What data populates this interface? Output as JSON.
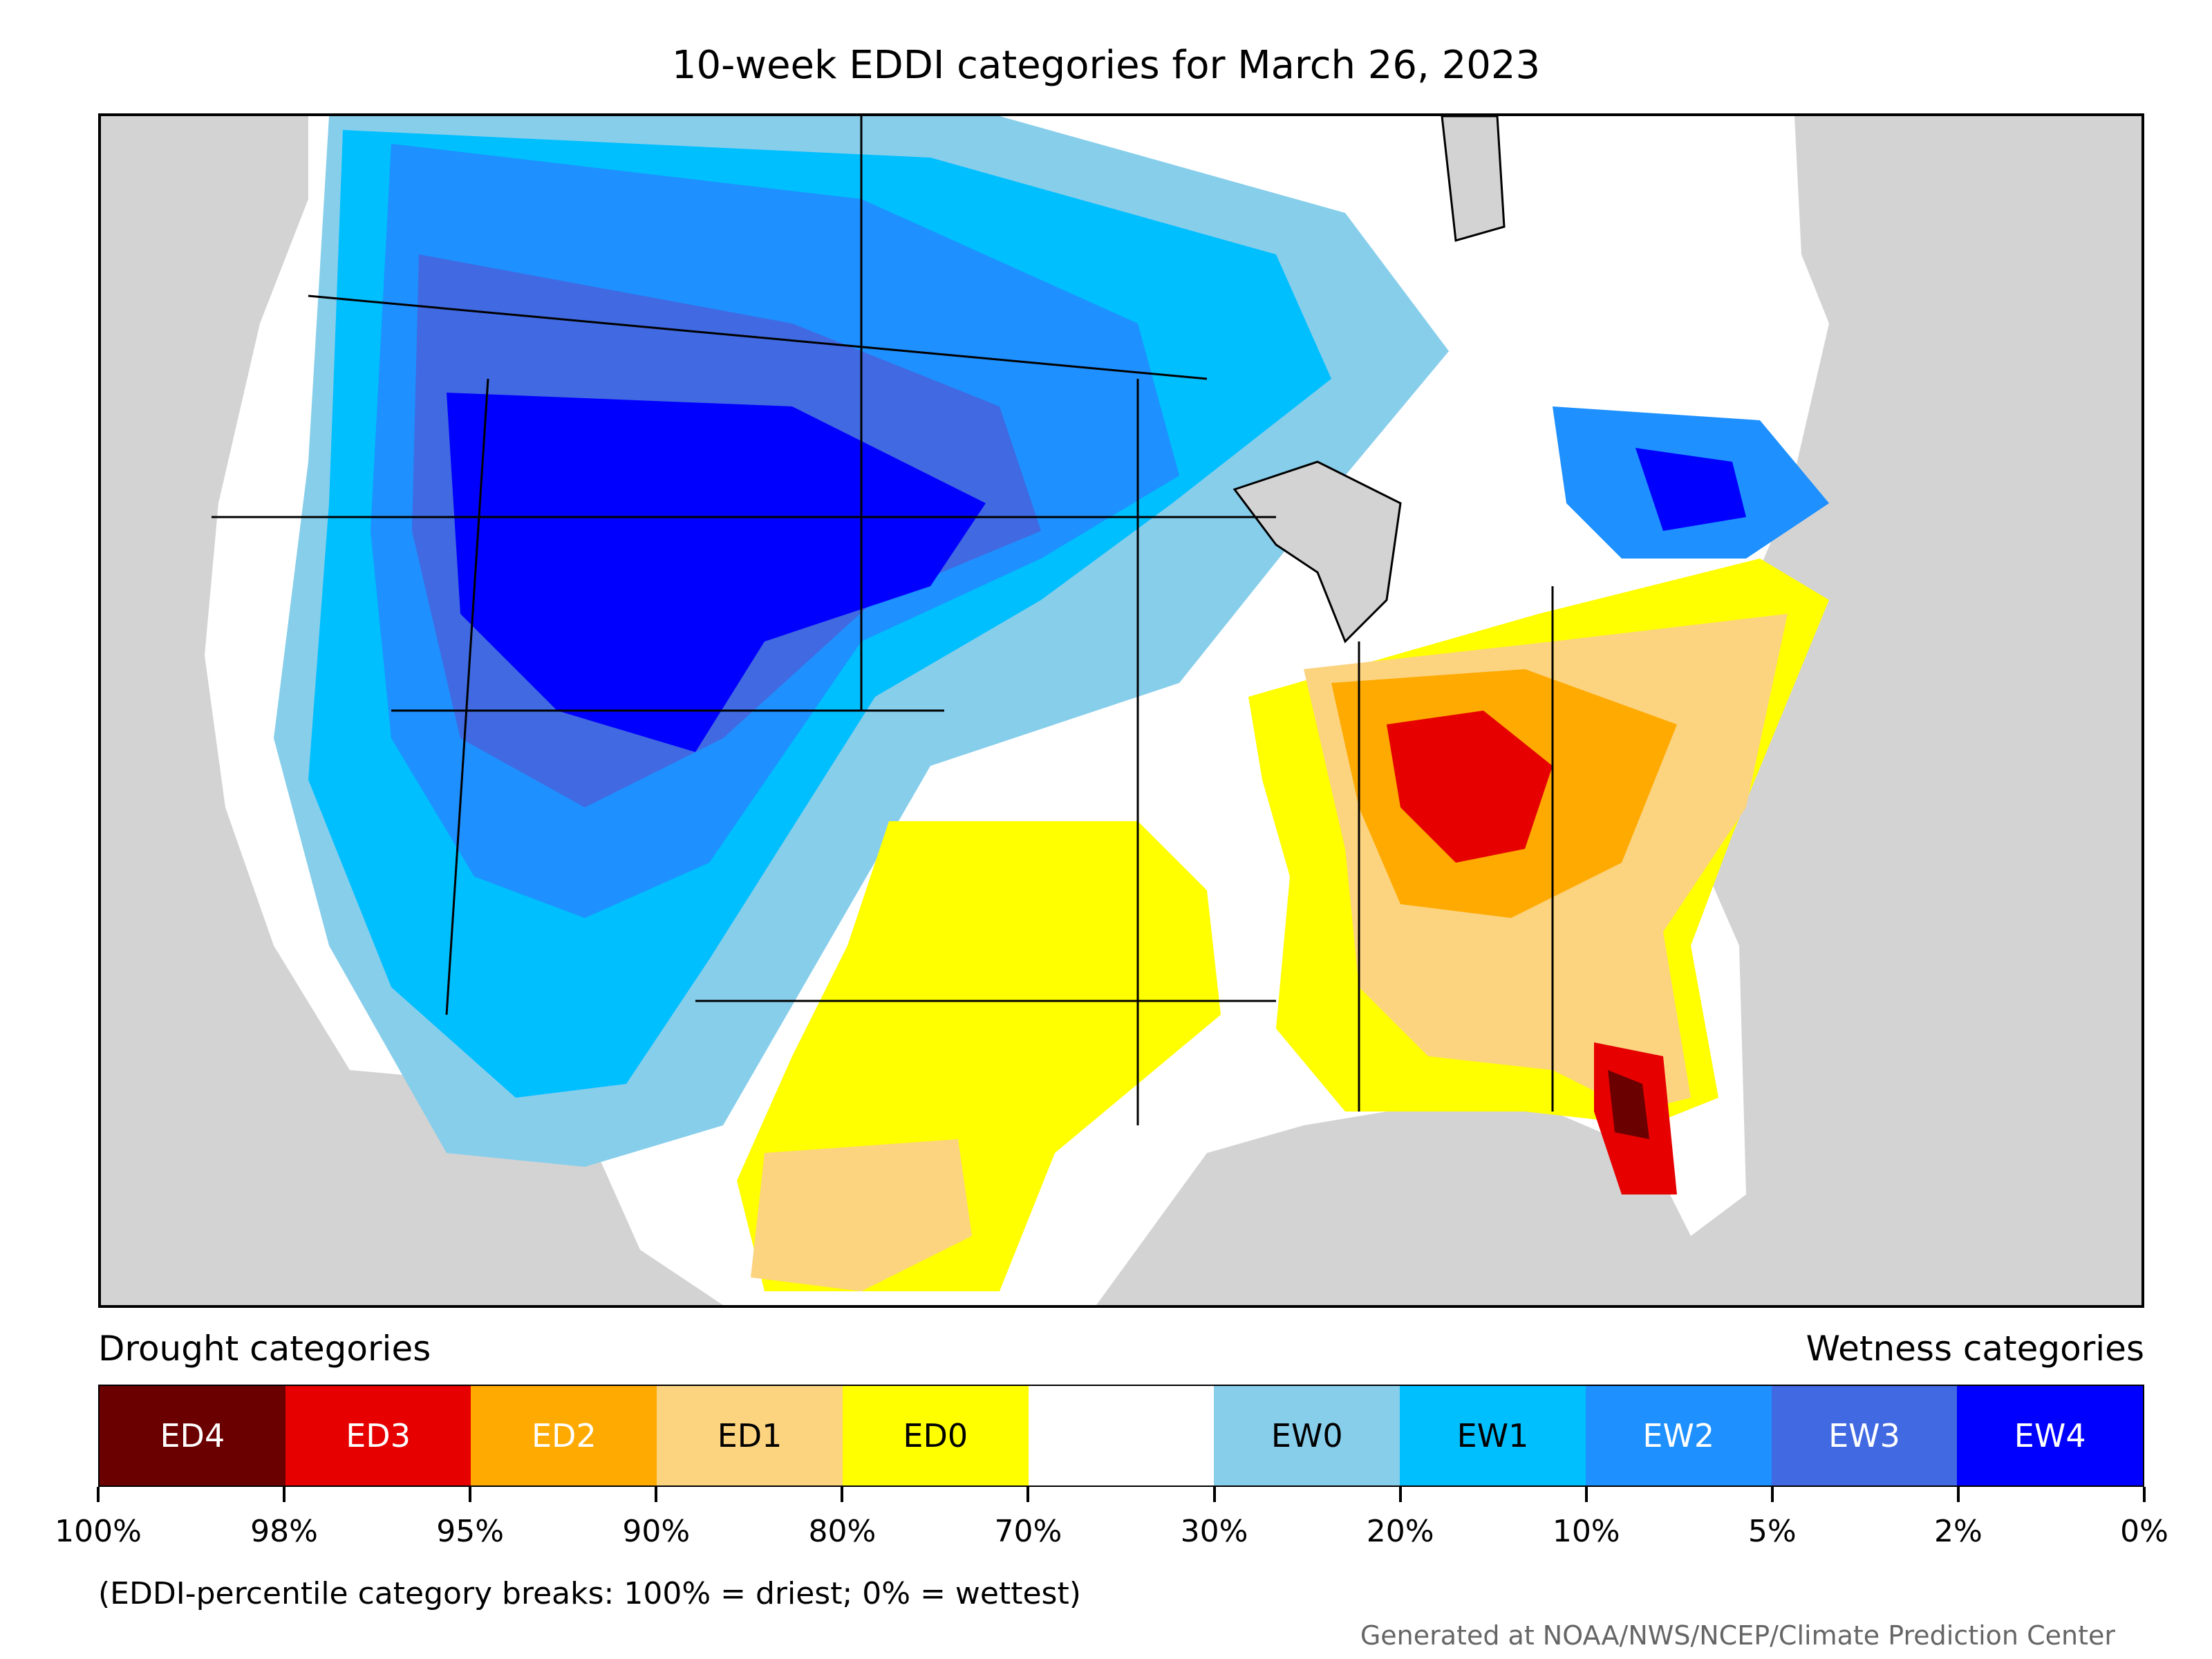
{
  "title": "10-week EDDI categories for March 26, 2023",
  "legend": {
    "drought_heading": "Drought categories",
    "wetness_heading": "Wetness categories",
    "categories": [
      {
        "label": "ED4",
        "color": "#6b0000"
      },
      {
        "label": "ED3",
        "color": "#e60000"
      },
      {
        "label": "ED2",
        "color": "#ffaa00"
      },
      {
        "label": "ED1",
        "color": "#fcd37f"
      },
      {
        "label": "ED0",
        "color": "#ffff00"
      },
      {
        "label": "",
        "color": "#ffffff"
      },
      {
        "label": "EW0",
        "color": "#87ceeb"
      },
      {
        "label": "EW1",
        "color": "#00bfff"
      },
      {
        "label": "EW2",
        "color": "#1e90ff"
      },
      {
        "label": "EW3",
        "color": "#4169e1"
      },
      {
        "label": "EW4",
        "color": "#0000ff"
      }
    ],
    "ticks": [
      "100%",
      "98%",
      "95%",
      "90%",
      "80%",
      "70%",
      "30%",
      "20%",
      "10%",
      "5%",
      "2%",
      "0%"
    ]
  },
  "footnote": "(EDDI-percentile category breaks: 100% = driest; 0% = wettest)",
  "credit": "Generated at NOAA/NWS/NCEP/Climate Prediction Center",
  "map": {
    "background_color": "#d3d3d3",
    "region_colors": {
      "EW4": "#0000ff",
      "EW3": "#4169e1",
      "EW2": "#1e90ff",
      "EW1": "#00bfff",
      "EW0": "#87ceeb",
      "ED0": "#ffff00",
      "ED1": "#fcd37f",
      "ED2": "#ffaa00",
      "ED3": "#e60000",
      "ED4": "#6b0000"
    }
  }
}
